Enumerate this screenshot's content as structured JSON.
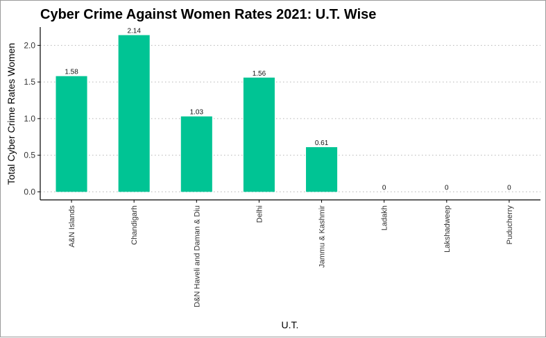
{
  "chart_data": {
    "type": "bar",
    "title": "Cyber Crime Against Women Rates 2021: U.T. Wise",
    "xlabel": "U.T.",
    "ylabel": "Total Cyber Crime Rates Women",
    "categories": [
      "A&N Islands",
      "Chandigarh",
      "D&N Haveli and Daman & Diu",
      "Delhi",
      "Jammu & Kashmir",
      "Ladakh",
      "Lakshadweep",
      "Puducherry"
    ],
    "values": [
      1.58,
      2.14,
      1.03,
      1.56,
      0.61,
      0,
      0,
      0
    ],
    "value_labels": [
      "1.58",
      "2.14",
      "1.03",
      "1.56",
      "0.61",
      "0",
      "0",
      "0"
    ],
    "yticks": [
      "0.0",
      "0.5",
      "1.0",
      "1.5",
      "2.0"
    ],
    "ylim": [
      -0.11,
      2.25
    ],
    "grid": "horizontal-dotted",
    "bar_color": "#00C494"
  }
}
